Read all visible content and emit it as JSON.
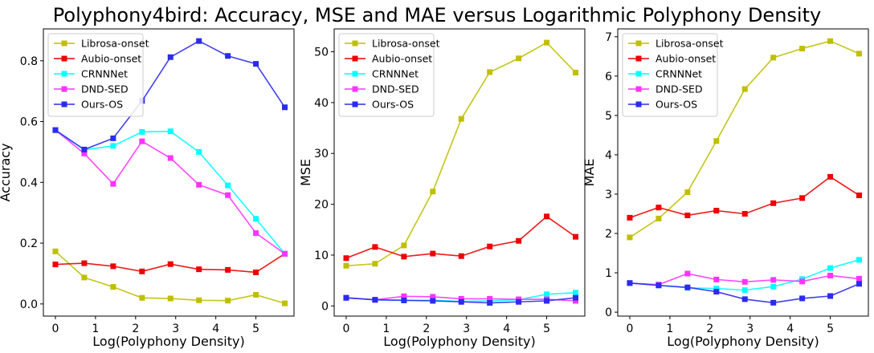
{
  "figure": {
    "title": "Polyphony4bird: Accuracy, MSE and MAE versus Logarithmic Polyphony Density"
  },
  "chart_data": [
    {
      "type": "line",
      "title": "",
      "xlabel": "Log(Polyphony Density)",
      "ylabel": "Accuracy",
      "x": [
        0,
        0.72,
        1.44,
        2.16,
        2.87,
        3.58,
        4.3,
        5.0,
        5.72
      ],
      "xlim": [
        -0.3,
        5.95
      ],
      "ylim": [
        -0.04,
        0.905
      ],
      "xticks": [
        0,
        1,
        2,
        3,
        4,
        5
      ],
      "yticks": [
        0.0,
        0.2,
        0.4,
        0.6,
        0.8
      ],
      "ytick_labels": [
        "0.0",
        "0.2",
        "0.4",
        "0.6",
        "0.8"
      ],
      "legend": "top-left",
      "grid": false,
      "series": [
        {
          "name": "Librosa-onset",
          "color": "#bfbf00",
          "values": [
            0.173,
            0.087,
            0.056,
            0.02,
            0.018,
            0.012,
            0.011,
            0.03,
            0.002
          ]
        },
        {
          "name": "Aubio-onset",
          "color": "#ee0000",
          "values": [
            0.13,
            0.134,
            0.124,
            0.107,
            0.131,
            0.114,
            0.112,
            0.104,
            0.165
          ]
        },
        {
          "name": "CRNNNet",
          "color": "#00ffff",
          "values": [
            0.572,
            0.507,
            0.52,
            0.566,
            0.568,
            0.5,
            0.39,
            0.28,
            0.165
          ]
        },
        {
          "name": "DND-SED",
          "color": "#ff33ff",
          "values": [
            0.572,
            0.495,
            0.395,
            0.535,
            0.48,
            0.392,
            0.358,
            0.233,
            0.165
          ]
        },
        {
          "name": "Ours-OS",
          "color": "#2b2bee",
          "values": [
            0.572,
            0.508,
            0.545,
            0.668,
            0.812,
            0.865,
            0.816,
            0.79,
            0.647
          ]
        }
      ]
    },
    {
      "type": "line",
      "title": "",
      "xlabel": "Log(Polyphony Density)",
      "ylabel": "MSE",
      "x": [
        0,
        0.72,
        1.44,
        2.16,
        2.87,
        3.58,
        4.3,
        5.0,
        5.72
      ],
      "xlim": [
        -0.3,
        5.95
      ],
      "ylim": [
        -2,
        54.5
      ],
      "xticks": [
        0,
        1,
        2,
        3,
        4,
        5
      ],
      "yticks": [
        0,
        10,
        20,
        30,
        40,
        50
      ],
      "ytick_labels": [
        "0",
        "10",
        "20",
        "30",
        "40",
        "50"
      ],
      "legend": "top-left",
      "grid": false,
      "series": [
        {
          "name": "Librosa-onset",
          "color": "#bfbf00",
          "values": [
            7.9,
            8.3,
            11.9,
            22.5,
            36.8,
            46.0,
            48.7,
            51.8,
            45.9
          ]
        },
        {
          "name": "Aubio-onset",
          "color": "#ee0000",
          "values": [
            9.4,
            11.6,
            9.7,
            10.3,
            9.8,
            11.7,
            12.8,
            17.6,
            13.6
          ]
        },
        {
          "name": "CRNNNet",
          "color": "#00ffff",
          "values": [
            1.6,
            1.2,
            1.1,
            1.1,
            0.9,
            1.0,
            1.2,
            2.3,
            2.6
          ]
        },
        {
          "name": "DND-SED",
          "color": "#ff33ff",
          "values": [
            1.6,
            1.2,
            1.9,
            1.8,
            1.4,
            1.4,
            1.3,
            1.3,
            1.0
          ]
        },
        {
          "name": "Ours-OS",
          "color": "#2b2bee",
          "values": [
            1.6,
            1.2,
            1.1,
            1.0,
            0.8,
            0.6,
            0.8,
            1.0,
            1.6
          ]
        }
      ]
    },
    {
      "type": "line",
      "title": "",
      "xlabel": "Log(Polyphony Density)",
      "ylabel": "MAE",
      "x": [
        0,
        0.72,
        1.44,
        2.16,
        2.87,
        3.58,
        4.3,
        5.0,
        5.72
      ],
      "xlim": [
        -0.3,
        5.95
      ],
      "ylim": [
        -0.1,
        7.2
      ],
      "xticks": [
        0,
        1,
        2,
        3,
        4,
        5
      ],
      "yticks": [
        0,
        1,
        2,
        3,
        4,
        5,
        6,
        7
      ],
      "ytick_labels": [
        "0",
        "1",
        "2",
        "3",
        "4",
        "5",
        "6",
        "7"
      ],
      "legend": "top-left",
      "grid": false,
      "series": [
        {
          "name": "Librosa-onset",
          "color": "#bfbf00",
          "values": [
            1.9,
            2.38,
            3.05,
            4.35,
            5.67,
            6.47,
            6.7,
            6.89,
            6.57
          ]
        },
        {
          "name": "Aubio-onset",
          "color": "#ee0000",
          "values": [
            2.4,
            2.66,
            2.46,
            2.58,
            2.5,
            2.77,
            2.9,
            3.44,
            2.97
          ]
        },
        {
          "name": "CRNNNet",
          "color": "#00ffff",
          "values": [
            0.74,
            0.68,
            0.62,
            0.6,
            0.56,
            0.65,
            0.84,
            1.12,
            1.33
          ]
        },
        {
          "name": "DND-SED",
          "color": "#ff33ff",
          "values": [
            0.74,
            0.7,
            0.98,
            0.83,
            0.77,
            0.82,
            0.78,
            0.93,
            0.85
          ]
        },
        {
          "name": "Ours-OS",
          "color": "#2b2bee",
          "values": [
            0.74,
            0.68,
            0.63,
            0.52,
            0.33,
            0.24,
            0.35,
            0.41,
            0.72
          ]
        }
      ]
    }
  ]
}
